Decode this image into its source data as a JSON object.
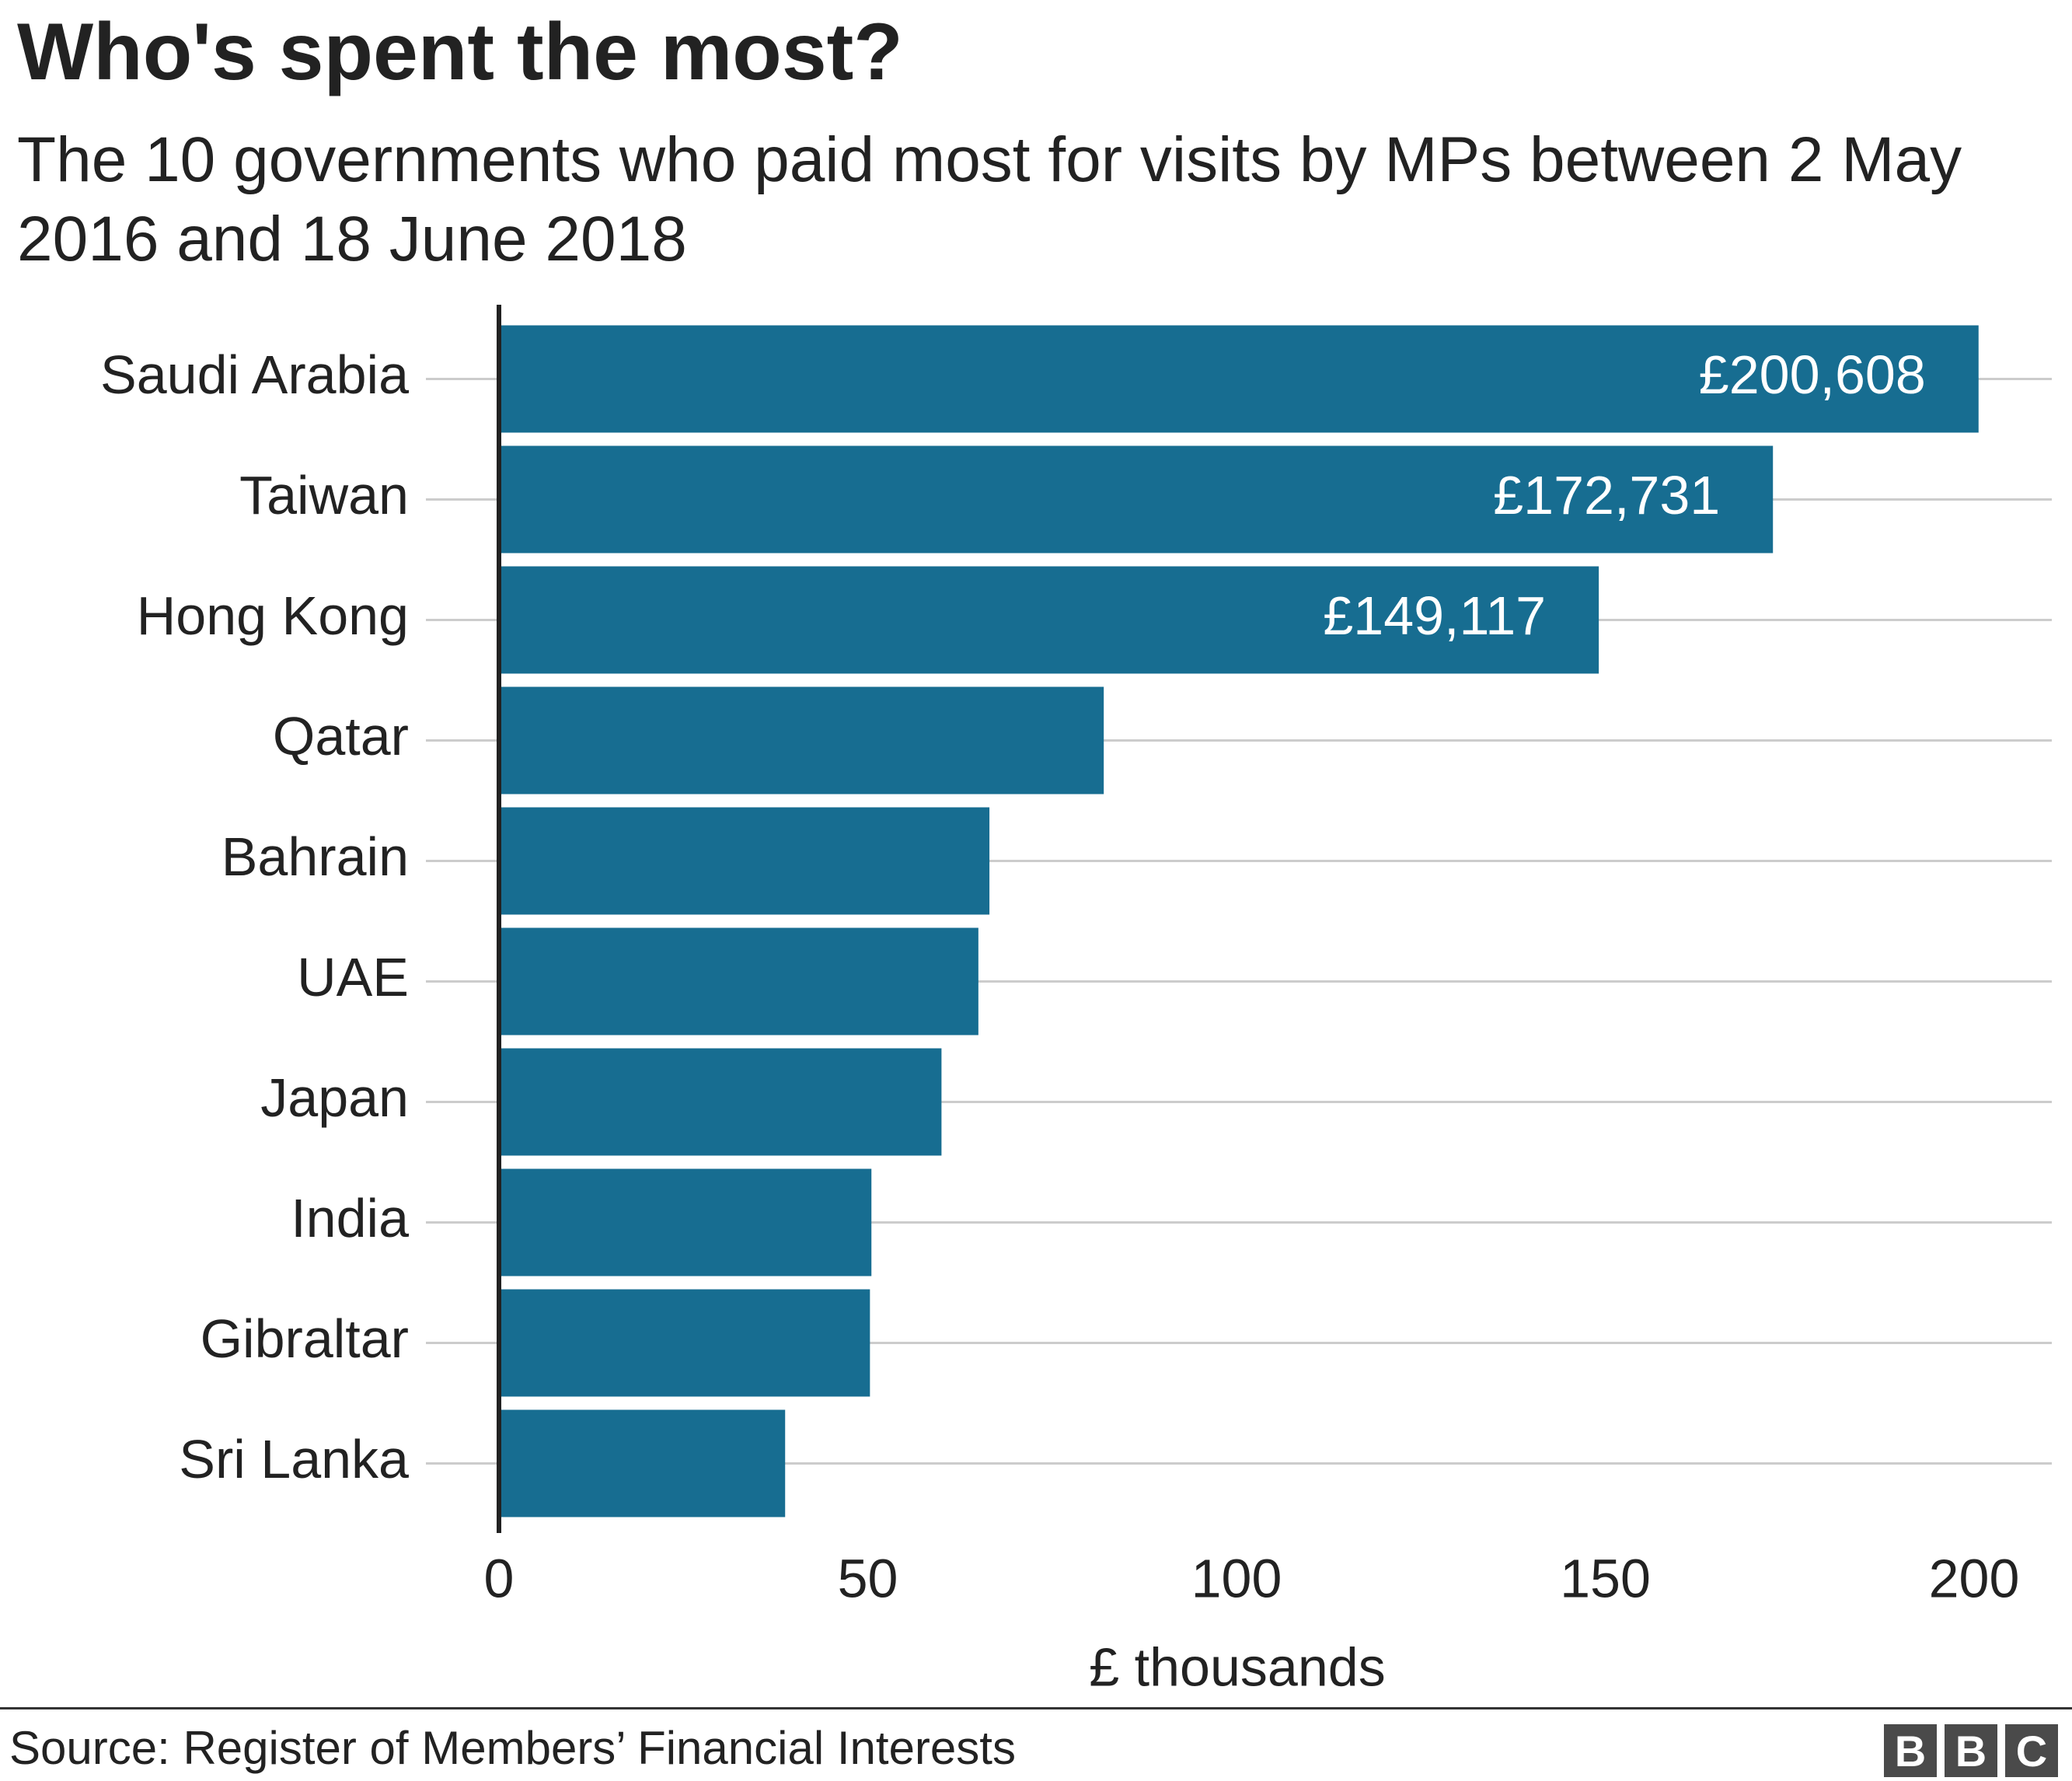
{
  "header": {
    "title": "Who's spent the most?",
    "subtitle": "The 10 governments who paid most for visits by MPs between 2 May 2016 and 18 June 2018"
  },
  "footer": {
    "source": "Source: Register of Members’ Financial Interests",
    "logo": [
      "B",
      "B",
      "C"
    ]
  },
  "chart_data": {
    "type": "bar",
    "orientation": "horizontal",
    "categories": [
      "Saudi Arabia",
      "Taiwan",
      "Hong Kong",
      "Qatar",
      "Bahrain",
      "UAE",
      "Japan",
      "India",
      "Gibraltar",
      "Sri Lanka"
    ],
    "values": [
      200.608,
      172.731,
      149.117,
      82,
      66.5,
      65,
      60,
      50.5,
      50.3,
      38.8
    ],
    "value_labels": [
      "£200,608",
      "£172,731",
      "£149,117",
      "",
      "",
      "",
      "",
      "",
      "",
      ""
    ],
    "xlabel": "£ thousands",
    "xlim": [
      0,
      200
    ],
    "xticks": [
      "0",
      "50",
      "100",
      "150",
      "200"
    ],
    "grid": true,
    "colors": {
      "bar": "#176D91",
      "grid": "#cccccc",
      "axis": "#222222",
      "text": "#222222",
      "label_inside": "#ffffff"
    }
  }
}
